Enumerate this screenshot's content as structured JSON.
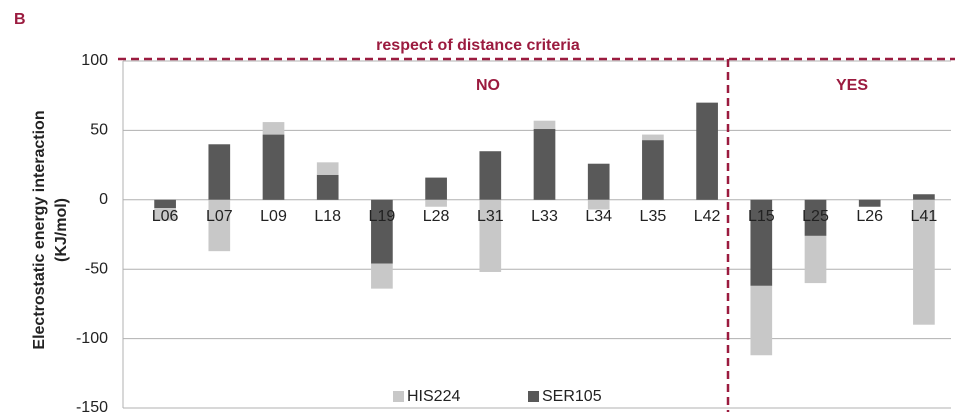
{
  "chart_data": {
    "type": "stacked_bar",
    "panel_label": "B",
    "annotation_header": "respect of distance criteria",
    "groups": [
      "NO",
      "YES"
    ],
    "ylabel": [
      "Electrostatic energy interaction",
      "(KJ/mol)"
    ],
    "categories": [
      "L06",
      "L07",
      "L09",
      "L18",
      "L19",
      "L28",
      "L31",
      "L33",
      "L34",
      "L35",
      "L42",
      "L15",
      "L25",
      "L26",
      "L41"
    ],
    "series": [
      {
        "name": "SER105",
        "color": "#595959",
        "values": [
          -6,
          40,
          47,
          18,
          -46,
          16,
          35,
          51,
          26,
          43,
          70,
          -62,
          -26,
          -5,
          4
        ]
      },
      {
        "name": "HIS224",
        "color": "#c8c8c8",
        "values": [
          -9,
          -37,
          9,
          9,
          -18,
          -5,
          -52,
          6,
          -7,
          4,
          0,
          -50,
          -34,
          0,
          -90
        ]
      }
    ],
    "ylim": [
      -150,
      100
    ],
    "yticks": [
      -150,
      -100,
      -50,
      0,
      50,
      100
    ],
    "grid": true
  }
}
